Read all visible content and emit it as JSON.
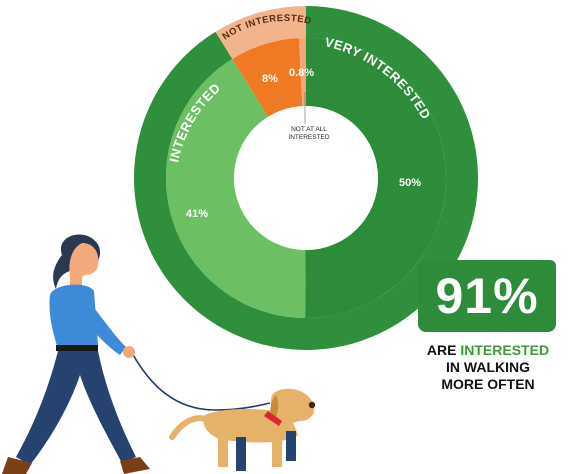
{
  "chart_data": {
    "type": "pie",
    "style": "donut",
    "slices": [
      {
        "label": "VERY INTERESTED",
        "value": 50,
        "value_label": "50%",
        "color": "#2e8b3a"
      },
      {
        "label": "INTERESTED",
        "value": 41,
        "value_label": "41%",
        "color": "#6cbf62"
      },
      {
        "label": "NOT INTERESTED",
        "value": 8,
        "value_label": "8%",
        "color": "#f07a23"
      },
      {
        "label": "NOT AT ALL INTERESTED",
        "value": 0.8,
        "value_label": "0.8%",
        "color": "#f3a87a"
      }
    ],
    "outer_band": [
      {
        "label": "VERY INTERESTED",
        "color": "#2f8f3c"
      },
      {
        "label": "INTERESTED",
        "color": "#2f8f3c"
      },
      {
        "label": "NOT INTERESTED",
        "color": "#f2b48c"
      }
    ],
    "callout": {
      "value": "91%",
      "text_prefix": "ARE",
      "text_accent": "INTERESTED",
      "text_rest": [
        "IN WALKING",
        "MORE OFTEN"
      ]
    },
    "not_at_all_label_lines": [
      "NOT AT ALL",
      "INTERESTED"
    ]
  },
  "colors": {
    "dark_green": "#2e8b3a",
    "light_green": "#6cbf62",
    "orange": "#f07a23",
    "peach": "#f3a87a",
    "accent_text": "#3c9a3c"
  },
  "illustration": {
    "subject": "woman-walking-dog-illustration"
  }
}
